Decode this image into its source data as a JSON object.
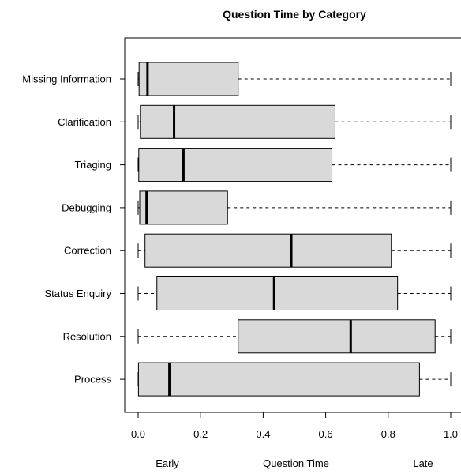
{
  "chart_data": {
    "type": "boxplot",
    "orientation": "horizontal",
    "title": "Question Time by Category",
    "xlabel": "Question Time",
    "xlabel_left": "Early",
    "xlabel_right": "Late",
    "xlim": [
      -0.04,
      1.0
    ],
    "xticks": [
      0.0,
      0.2,
      0.4,
      0.6,
      0.8,
      1.0
    ],
    "xtick_labels": [
      "0.0",
      "0.2",
      "0.4",
      "0.6",
      "0.8",
      "1.0"
    ],
    "categories": [
      "Missing Information",
      "Clarification",
      "Triaging",
      "Debugging",
      "Correction",
      "Status Enquiry",
      "Resolution",
      "Process"
    ],
    "boxes": [
      {
        "category": "Missing Information",
        "min": 0.0,
        "q1": 0.003,
        "median": 0.03,
        "q3": 0.32,
        "max": 1.0
      },
      {
        "category": "Clarification",
        "min": 0.0,
        "q1": 0.007,
        "median": 0.115,
        "q3": 0.63,
        "max": 1.0
      },
      {
        "category": "Triaging",
        "min": 0.0,
        "q1": 0.002,
        "median": 0.145,
        "q3": 0.62,
        "max": 1.0
      },
      {
        "category": "Debugging",
        "min": 0.0,
        "q1": 0.005,
        "median": 0.027,
        "q3": 0.286,
        "max": 1.0
      },
      {
        "category": "Correction",
        "min": 0.0,
        "q1": 0.022,
        "median": 0.49,
        "q3": 0.81,
        "max": 1.0
      },
      {
        "category": "Status Enquiry",
        "min": 0.0,
        "q1": 0.06,
        "median": 0.435,
        "q3": 0.83,
        "max": 1.0
      },
      {
        "category": "Resolution",
        "min": 0.0,
        "q1": 0.32,
        "median": 0.68,
        "q3": 0.95,
        "max": 1.0
      },
      {
        "category": "Process",
        "min": 0.0,
        "q1": 0.001,
        "median": 0.1,
        "q3": 0.9,
        "max": 1.0
      }
    ],
    "box_fill": "#d9d9d9",
    "box_stroke": "#000000",
    "grid": false
  }
}
